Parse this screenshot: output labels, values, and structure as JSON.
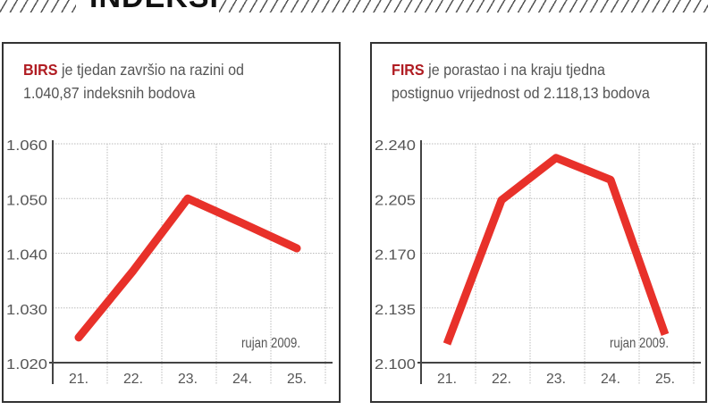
{
  "header": {
    "title": "INDEKSI"
  },
  "colors": {
    "line": "#e8312a",
    "accent": "#b01c22",
    "axis": "#444",
    "grid": "#bbb"
  },
  "chart_data": [
    {
      "type": "line",
      "title_bold": "BIRS",
      "title_rest": " je tjedan završio na razini od",
      "title_line2": "1.040,87 indeksnih bodova",
      "categories": [
        "21.",
        "22.",
        "23.",
        "24.",
        "25."
      ],
      "values": [
        1.0246,
        1.0368,
        1.05,
        1.0455,
        1.0409
      ],
      "ylim": [
        1.02,
        1.06
      ],
      "yticks": [
        1.02,
        1.03,
        1.04,
        1.05,
        1.06
      ],
      "ytick_labels": [
        "1.020",
        "1.030",
        "1.040",
        "1.050",
        "1.060"
      ],
      "annotation": "rujan 2009.",
      "grid": true
    },
    {
      "type": "line",
      "title_bold": "FIRS",
      "title_rest": " je porastao i na kraju tjedna",
      "title_line2": "postignuo vrijednost od 2.118,13 bodova",
      "categories": [
        "21.",
        "22.",
        "23.",
        "24.",
        "25."
      ],
      "values": [
        2.112,
        2.204,
        2.231,
        2.217,
        2.118
      ],
      "ylim": [
        2.1,
        2.24
      ],
      "yticks": [
        2.1,
        2.135,
        2.17,
        2.205,
        2.24
      ],
      "ytick_labels": [
        "2.100",
        "2.135",
        "2.170",
        "2.205",
        "2.240"
      ],
      "annotation": "rujan 2009.",
      "grid": true
    }
  ]
}
